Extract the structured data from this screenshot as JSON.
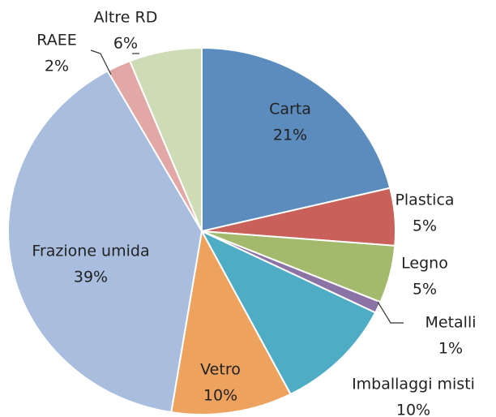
{
  "chart_data": {
    "type": "pie",
    "categories": [
      "Carta",
      "Plastica",
      "Legno",
      "Metalli",
      "Imballaggi misti",
      "Vetro",
      "Frazione umida",
      "RAEE",
      "Altre RD"
    ],
    "values": [
      21,
      5,
      5,
      1,
      10,
      10,
      39,
      2,
      6
    ],
    "value_labels": [
      "21%",
      "5%",
      "5%",
      "1%",
      "10%",
      "10%",
      "39%",
      "2%",
      "6%"
    ],
    "colors": [
      "#5b8cbd",
      "#c9605a",
      "#a3b96b",
      "#8c73a6",
      "#4eadc4",
      "#eda25d",
      "#a9bddf",
      "#e1a8a6",
      "#cedcb5"
    ]
  }
}
